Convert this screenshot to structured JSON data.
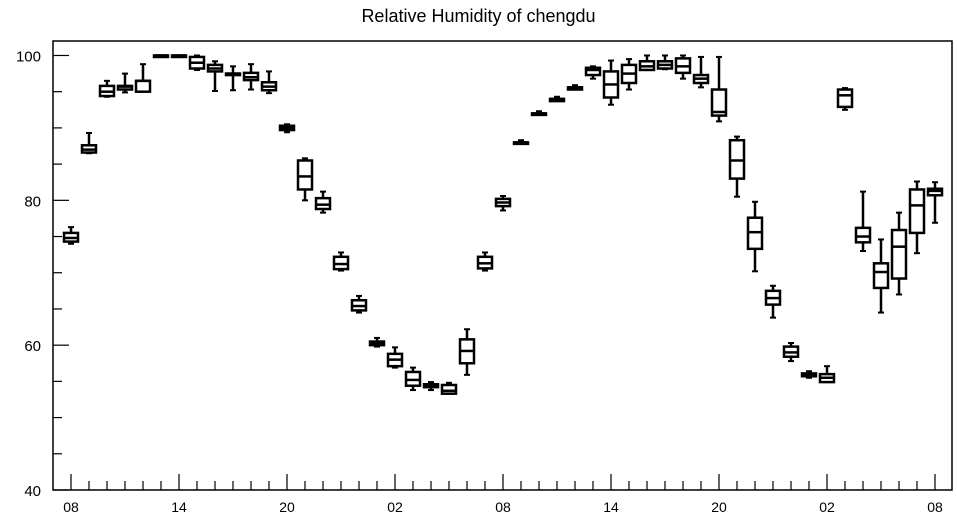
{
  "chart_data": {
    "type": "boxplot",
    "title": "Relative Humidity of chengdu",
    "xlabel": "",
    "ylabel": "",
    "ylim": [
      40,
      102
    ],
    "y_ticks": [
      40,
      60,
      80,
      100
    ],
    "x_tick_labels": [
      "08",
      "14",
      "20",
      "02",
      "08",
      "14",
      "20",
      "02",
      "08"
    ],
    "x_tick_hours": [
      0,
      6,
      12,
      18,
      24,
      30,
      36,
      42,
      48
    ],
    "grid": false,
    "boxes": [
      {
        "hour": 0,
        "min": 74.0,
        "q1": 74.3,
        "median": 74.8,
        "q3": 75.5,
        "max": 76.3
      },
      {
        "hour": 1,
        "min": 86.5,
        "q1": 86.6,
        "median": 87.0,
        "q3": 87.6,
        "max": 89.3
      },
      {
        "hour": 2,
        "min": 94.3,
        "q1": 94.4,
        "median": 95.0,
        "q3": 95.8,
        "max": 96.5
      },
      {
        "hour": 3,
        "min": 94.9,
        "q1": 95.3,
        "median": 95.7,
        "q3": 95.8,
        "max": 97.5
      },
      {
        "hour": 4,
        "min": 95.0,
        "q1": 95.0,
        "median": 96.5,
        "q3": 96.5,
        "max": 98.8
      },
      {
        "hour": 5,
        "min": 99.9,
        "q1": 99.9,
        "median": 100.0,
        "q3": 100.0,
        "max": 100.0
      },
      {
        "hour": 6,
        "min": 100.0,
        "q1": 100.0,
        "median": 100.0,
        "q3": 100.0,
        "max": 100.0
      },
      {
        "hour": 7,
        "min": 98.0,
        "q1": 98.2,
        "median": 99.0,
        "q3": 99.8,
        "max": 100.0
      },
      {
        "hour": 8,
        "min": 95.1,
        "q1": 97.8,
        "median": 98.2,
        "q3": 98.7,
        "max": 99.2
      },
      {
        "hour": 9,
        "min": 95.2,
        "q1": 97.5,
        "median": 97.5,
        "q3": 97.5,
        "max": 98.5
      },
      {
        "hour": 10,
        "min": 95.3,
        "q1": 96.6,
        "median": 97.0,
        "q3": 97.6,
        "max": 98.8
      },
      {
        "hour": 11,
        "min": 94.8,
        "q1": 95.2,
        "median": 95.7,
        "q3": 96.3,
        "max": 97.8
      },
      {
        "hour": 12,
        "min": 89.4,
        "q1": 89.7,
        "median": 90.0,
        "q3": 90.3,
        "max": 90.5
      },
      {
        "hour": 13,
        "min": 80.0,
        "q1": 81.5,
        "median": 83.3,
        "q3": 85.5,
        "max": 85.8
      },
      {
        "hour": 14,
        "min": 78.3,
        "q1": 78.8,
        "median": 79.4,
        "q3": 80.3,
        "max": 81.2
      },
      {
        "hour": 15,
        "min": 70.3,
        "q1": 70.5,
        "median": 71.2,
        "q3": 72.2,
        "max": 72.8
      },
      {
        "hour": 16,
        "min": 64.5,
        "q1": 64.8,
        "median": 65.4,
        "q3": 66.2,
        "max": 66.8
      },
      {
        "hour": 17,
        "min": 59.8,
        "q1": 60.0,
        "median": 60.2,
        "q3": 60.5,
        "max": 61.0
      },
      {
        "hour": 18,
        "min": 56.9,
        "q1": 57.1,
        "median": 58.0,
        "q3": 58.8,
        "max": 59.7
      },
      {
        "hour": 19,
        "min": 53.8,
        "q1": 54.4,
        "median": 55.2,
        "q3": 56.3,
        "max": 56.9
      },
      {
        "hour": 20,
        "min": 53.8,
        "q1": 54.2,
        "median": 54.3,
        "q3": 54.6,
        "max": 54.9
      },
      {
        "hour": 21,
        "min": 53.3,
        "q1": 53.3,
        "median": 53.7,
        "q3": 54.5,
        "max": 54.8
      },
      {
        "hour": 22,
        "min": 55.9,
        "q1": 57.5,
        "median": 59.2,
        "q3": 60.8,
        "max": 62.2
      },
      {
        "hour": 23,
        "min": 70.3,
        "q1": 70.6,
        "median": 71.3,
        "q3": 72.2,
        "max": 72.8
      },
      {
        "hour": 24,
        "min": 78.6,
        "q1": 79.2,
        "median": 79.7,
        "q3": 80.2,
        "max": 80.6
      },
      {
        "hour": 25,
        "min": 87.8,
        "q1": 87.8,
        "median": 88.0,
        "q3": 88.0,
        "max": 88.3
      },
      {
        "hour": 26,
        "min": 91.8,
        "q1": 91.8,
        "median": 92.0,
        "q3": 92.0,
        "max": 92.3
      },
      {
        "hour": 27,
        "min": 93.7,
        "q1": 93.7,
        "median": 94.0,
        "q3": 94.0,
        "max": 94.3
      },
      {
        "hour": 28,
        "min": 95.3,
        "q1": 95.3,
        "median": 95.6,
        "q3": 95.6,
        "max": 95.9
      },
      {
        "hour": 29,
        "min": 96.8,
        "q1": 97.3,
        "median": 98.0,
        "q3": 98.3,
        "max": 98.5
      },
      {
        "hour": 30,
        "min": 93.2,
        "q1": 94.2,
        "median": 96.0,
        "q3": 97.8,
        "max": 99.3
      },
      {
        "hour": 31,
        "min": 95.3,
        "q1": 96.2,
        "median": 97.5,
        "q3": 98.7,
        "max": 99.5
      },
      {
        "hour": 32,
        "min": 98.0,
        "q1": 98.0,
        "median": 98.5,
        "q3": 99.2,
        "max": 100.0
      },
      {
        "hour": 33,
        "min": 98.1,
        "q1": 98.2,
        "median": 98.7,
        "q3": 99.2,
        "max": 100.0
      },
      {
        "hour": 34,
        "min": 96.8,
        "q1": 97.6,
        "median": 98.5,
        "q3": 99.6,
        "max": 100.0
      },
      {
        "hour": 35,
        "min": 95.6,
        "q1": 96.2,
        "median": 96.8,
        "q3": 97.3,
        "max": 99.8
      },
      {
        "hour": 36,
        "min": 90.9,
        "q1": 91.7,
        "median": 92.2,
        "q3": 95.3,
        "max": 99.8
      },
      {
        "hour": 37,
        "min": 80.5,
        "q1": 83.0,
        "median": 85.5,
        "q3": 88.3,
        "max": 88.8
      },
      {
        "hour": 38,
        "min": 70.2,
        "q1": 73.3,
        "median": 75.6,
        "q3": 77.6,
        "max": 79.8
      },
      {
        "hour": 39,
        "min": 63.8,
        "q1": 65.6,
        "median": 66.5,
        "q3": 67.5,
        "max": 68.2
      },
      {
        "hour": 40,
        "min": 57.8,
        "q1": 58.4,
        "median": 59.0,
        "q3": 59.8,
        "max": 60.3
      },
      {
        "hour": 41,
        "min": 55.5,
        "q1": 55.7,
        "median": 56.0,
        "q3": 56.1,
        "max": 56.4
      },
      {
        "hour": 42,
        "min": 54.9,
        "q1": 54.9,
        "median": 55.5,
        "q3": 56.0,
        "max": 57.1
      },
      {
        "hour": 43,
        "min": 92.5,
        "q1": 92.9,
        "median": 94.5,
        "q3": 95.3,
        "max": 95.5
      },
      {
        "hour": 44,
        "min": 73.0,
        "q1": 74.2,
        "median": 75.0,
        "q3": 76.2,
        "max": 81.2
      },
      {
        "hour": 45,
        "min": 64.5,
        "q1": 67.9,
        "median": 70.1,
        "q3": 71.3,
        "max": 74.6
      },
      {
        "hour": 46,
        "min": 67.0,
        "q1": 69.2,
        "median": 73.6,
        "q3": 75.9,
        "max": 78.3
      },
      {
        "hour": 47,
        "min": 72.7,
        "q1": 75.5,
        "median": 79.3,
        "q3": 81.5,
        "max": 82.6
      },
      {
        "hour": 48,
        "min": 76.9,
        "q1": 80.7,
        "median": 81.3,
        "q3": 81.6,
        "max": 82.5
      }
    ]
  }
}
